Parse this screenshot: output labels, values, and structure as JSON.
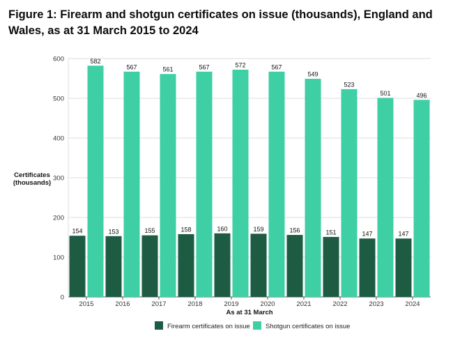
{
  "figure": {
    "title": "Figure 1: Firearm and shotgun certificates on issue (thousands), England and Wales, as at 31 March 2015 to 2024"
  },
  "chart_data": {
    "type": "bar",
    "title": "Figure 1: Firearm and shotgun certificates on issue (thousands), England and Wales, as at 31 March 2015 to 2024",
    "xlabel": "As at 31 March",
    "ylabel": "Certificates (thousands)",
    "ylabel_lines": [
      "Certificates",
      "(thousands)"
    ],
    "ylim": [
      0,
      600
    ],
    "yticks": [
      0,
      100,
      200,
      300,
      400,
      500,
      600
    ],
    "grid": true,
    "legend_position": "bottom",
    "categories": [
      "2015",
      "2016",
      "2017",
      "2018",
      "2019",
      "2020",
      "2021",
      "2022",
      "2023",
      "2024"
    ],
    "series": [
      {
        "name": "Firearm certificates on issue",
        "color": "#1d5b43",
        "values": [
          154,
          153,
          155,
          158,
          160,
          159,
          156,
          151,
          147,
          147
        ]
      },
      {
        "name": "Shotgun certificates on issue",
        "color": "#3ecfa4",
        "values": [
          582,
          567,
          561,
          567,
          572,
          567,
          549,
          523,
          501,
          496
        ]
      }
    ]
  }
}
